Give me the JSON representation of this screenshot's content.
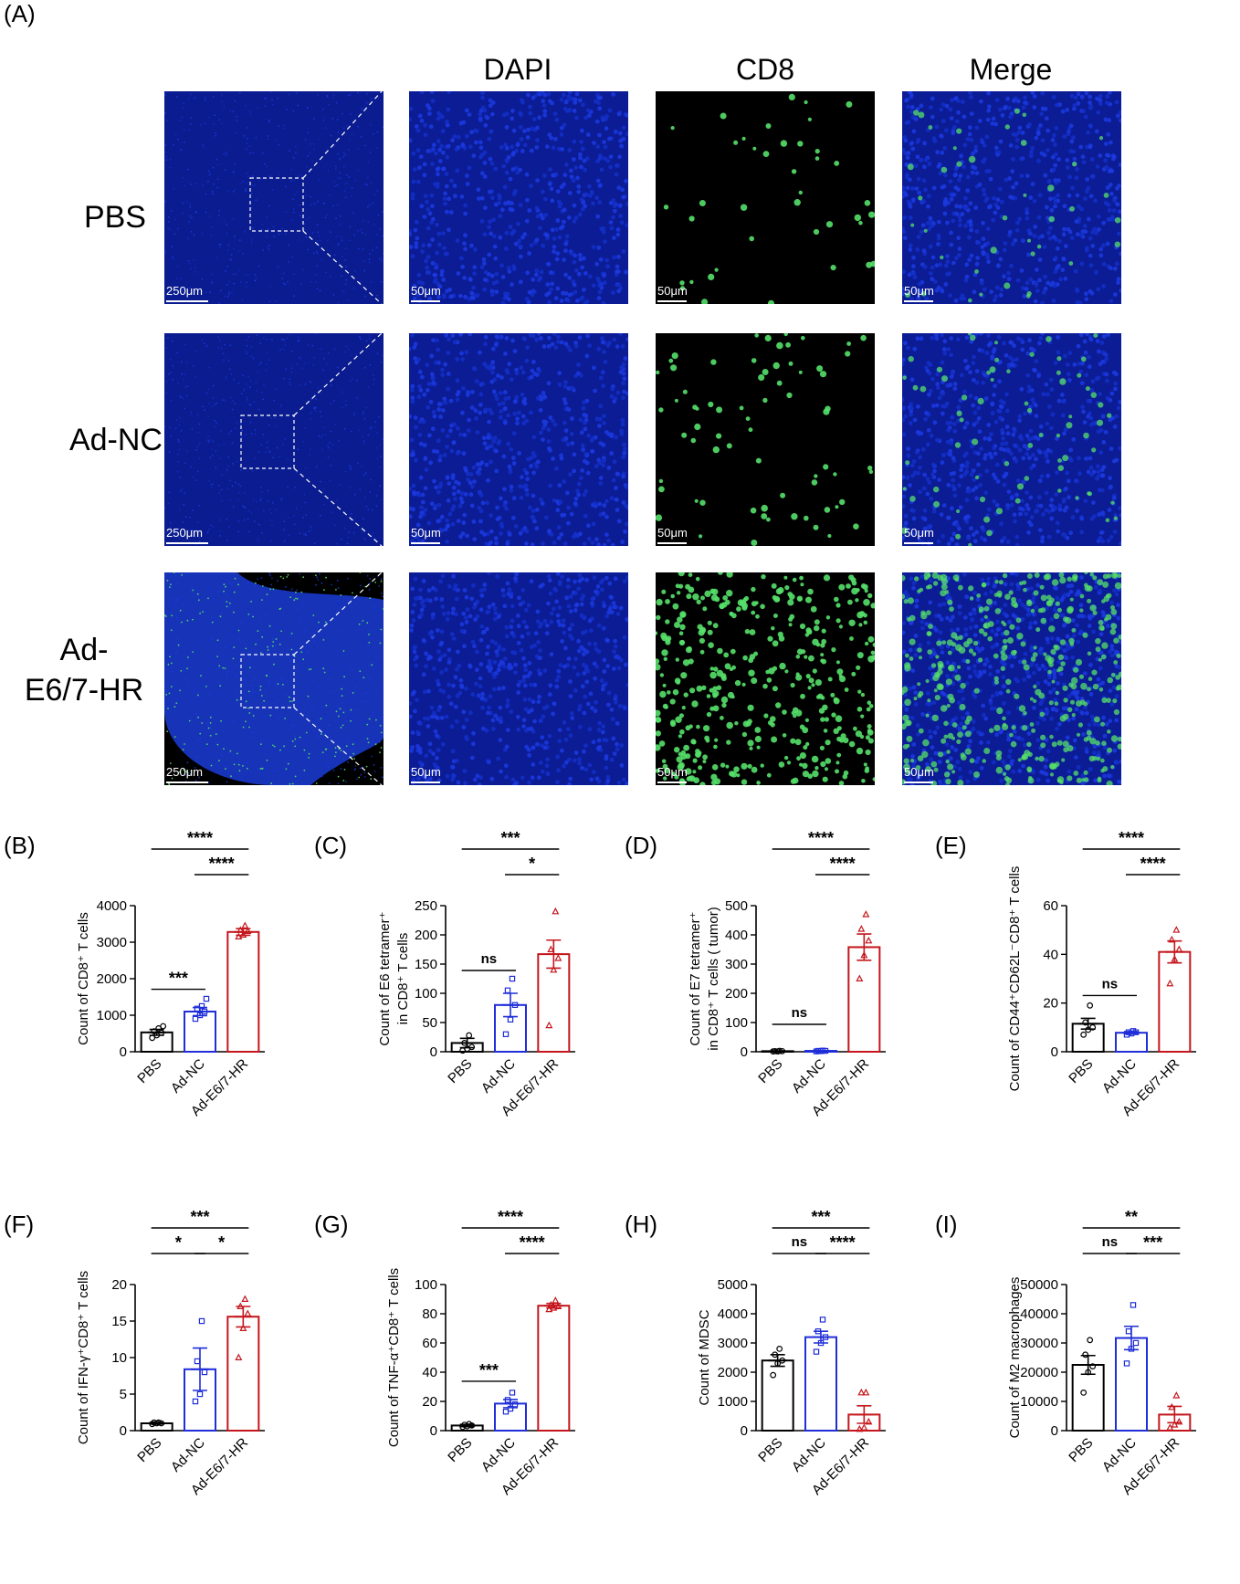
{
  "figure": {
    "panel_A_letter": "(A)",
    "columns": [
      "DAPI",
      "CD8",
      "Merge"
    ],
    "rows": [
      "PBS",
      "Ad-NC",
      "Ad-\nE6/7-HR"
    ],
    "row_labels": [
      [
        "PBS"
      ],
      [
        "Ad-NC"
      ],
      [
        "Ad-",
        "E6/7-HR"
      ]
    ],
    "scale_overview": "250μm",
    "scale_zoom": "50μm",
    "colors": {
      "pbs": "#000000",
      "adnc": "#1f2ed8",
      "ade67": "#c4161c",
      "dapi_blue": "#0b1fa8",
      "cd8_green": "#55e06a"
    }
  },
  "chart_data": [
    {
      "panel": "(B)",
      "type": "bar",
      "categories": [
        "PBS",
        "Ad-NC",
        "Ad-E6/7-HR"
      ],
      "values": [
        530,
        1100,
        3280
      ],
      "errors": [
        80,
        110,
        90
      ],
      "points": [
        [
          380,
          450,
          520,
          560,
          640,
          700
        ],
        [
          900,
          1000,
          1100,
          1180,
          1250,
          1450
        ],
        [
          3150,
          3200,
          3300,
          3330,
          3450
        ]
      ],
      "ylabel": "Count of CD8⁺ T cells",
      "ylim": [
        0,
        4000
      ],
      "yticks": [
        0,
        1000,
        2000,
        3000,
        4000
      ],
      "brackets": [
        {
          "from": 0,
          "to": 2,
          "label": "****"
        },
        {
          "from": 1,
          "to": 2,
          "label": "****"
        },
        {
          "from": 0,
          "to": 1,
          "label": "***"
        }
      ]
    },
    {
      "panel": "(C)",
      "type": "bar",
      "categories": [
        "PBS",
        "Ad-NC",
        "Ad-E6/7-HR"
      ],
      "values": [
        15,
        80,
        167
      ],
      "errors": [
        8,
        20,
        24
      ],
      "points": [
        [
          2,
          5,
          8,
          15,
          28
        ],
        [
          30,
          55,
          80,
          105,
          125
        ],
        [
          45,
          140,
          160,
          175,
          240
        ]
      ],
      "ylabel": "Count of E6 tetramer⁺ in CD8⁺ T cells",
      "ylim": [
        0,
        250
      ],
      "yticks": [
        0,
        50,
        100,
        150,
        200,
        250
      ],
      "brackets": [
        {
          "from": 0,
          "to": 2,
          "label": "***"
        },
        {
          "from": 1,
          "to": 2,
          "label": "*"
        },
        {
          "from": 0,
          "to": 1,
          "label": "ns"
        }
      ]
    },
    {
      "panel": "(D)",
      "type": "bar",
      "categories": [
        "PBS",
        "Ad-NC",
        "Ad-E6/7-HR"
      ],
      "values": [
        2,
        3,
        358
      ],
      "errors": [
        1,
        1,
        45
      ],
      "points": [
        [
          1,
          1,
          2,
          2,
          3
        ],
        [
          1,
          2,
          3,
          3,
          4
        ],
        [
          250,
          330,
          380,
          420,
          470
        ]
      ],
      "ylabel": "Count of E7 tetramer⁺ in CD8⁺ T cells ( tumor)",
      "ylim": [
        0,
        500
      ],
      "yticks": [
        0,
        100,
        200,
        300,
        400,
        500
      ],
      "brackets": [
        {
          "from": 0,
          "to": 2,
          "label": "****"
        },
        {
          "from": 1,
          "to": 2,
          "label": "****"
        },
        {
          "from": 0,
          "to": 1,
          "label": "ns"
        }
      ]
    },
    {
      "panel": "(E)",
      "type": "bar",
      "categories": [
        "PBS",
        "Ad-NC",
        "Ad-E6/7-HR"
      ],
      "values": [
        11.5,
        7.8,
        41
      ],
      "errors": [
        2.2,
        0.5,
        4.5
      ],
      "points": [
        [
          7,
          9,
          10,
          12,
          19
        ],
        [
          7,
          7.5,
          8,
          8,
          8.5
        ],
        [
          28,
          38,
          42,
          46,
          50
        ]
      ],
      "ylabel": "Count of CD44⁺CD62L⁻CD8⁺ T cells",
      "ylim": [
        0,
        60
      ],
      "yticks": [
        0,
        20,
        40,
        60
      ],
      "brackets": [
        {
          "from": 0,
          "to": 2,
          "label": "****"
        },
        {
          "from": 1,
          "to": 2,
          "label": "****"
        },
        {
          "from": 0,
          "to": 1,
          "label": "ns"
        }
      ]
    },
    {
      "panel": "(F)",
      "type": "bar",
      "categories": [
        "PBS",
        "Ad-NC",
        "Ad-E6/7-HR"
      ],
      "values": [
        1.0,
        8.4,
        15.6
      ],
      "errors": [
        0.1,
        2.9,
        1.4
      ],
      "points": [
        [
          0.9,
          1.0,
          1.0,
          1.1,
          1.1
        ],
        [
          4,
          5,
          8,
          9.5,
          15
        ],
        [
          10,
          14,
          16,
          17,
          18
        ]
      ],
      "ylabel": "Count of IFN-γ⁺CD8⁺ T cells",
      "ylim": [
        0,
        20
      ],
      "yticks": [
        0,
        5,
        10,
        15,
        20
      ],
      "brackets": [
        {
          "from": 0,
          "to": 2,
          "label": "***"
        },
        {
          "from": 0,
          "to": 1,
          "label": "*"
        },
        {
          "from": 1,
          "to": 2,
          "label": "*"
        }
      ]
    },
    {
      "panel": "(G)",
      "type": "bar",
      "categories": [
        "PBS",
        "Ad-NC",
        "Ad-E6/7-HR"
      ],
      "values": [
        3.5,
        18.5,
        85.5
      ],
      "errors": [
        0.8,
        2.8,
        1.6
      ],
      "points": [
        [
          2.5,
          3,
          3.5,
          4,
          4.5
        ],
        [
          13,
          15,
          18,
          21,
          26
        ],
        [
          83,
          84,
          85,
          86,
          89
        ]
      ],
      "ylabel": "Count of TNF-α⁺CD8⁺ T cells",
      "ylim": [
        0,
        100
      ],
      "yticks": [
        0,
        20,
        40,
        60,
        80,
        100
      ],
      "brackets": [
        {
          "from": 0,
          "to": 2,
          "label": "****"
        },
        {
          "from": 1,
          "to": 2,
          "label": "****"
        },
        {
          "from": 0,
          "to": 1,
          "label": "***"
        }
      ]
    },
    {
      "panel": "(H)",
      "type": "bar",
      "categories": [
        "PBS",
        "Ad-NC",
        "Ad-E6/7-HR"
      ],
      "values": [
        2400,
        3200,
        550
      ],
      "errors": [
        200,
        200,
        300
      ],
      "points": [
        [
          1900,
          2300,
          2400,
          2600,
          2800
        ],
        [
          2700,
          3000,
          3200,
          3400,
          3800
        ],
        [
          50,
          100,
          300,
          1300,
          1300
        ]
      ],
      "ylabel": "Count of MDSC",
      "ylim": [
        0,
        5000
      ],
      "yticks": [
        0,
        1000,
        2000,
        3000,
        4000,
        5000
      ],
      "brackets": [
        {
          "from": 0,
          "to": 2,
          "label": "***"
        },
        {
          "from": 0,
          "to": 1,
          "label": "ns"
        },
        {
          "from": 1,
          "to": 2,
          "label": "****"
        }
      ]
    },
    {
      "panel": "(I)",
      "type": "bar",
      "categories": [
        "PBS",
        "Ad-NC",
        "Ad-E6/7-HR"
      ],
      "values": [
        22500,
        31700,
        5500
      ],
      "errors": [
        3200,
        4000,
        2800
      ],
      "points": [
        [
          13000,
          20000,
          22000,
          26000,
          31000
        ],
        [
          23000,
          28000,
          30000,
          34000,
          43000
        ],
        [
          1000,
          2000,
          3000,
          8000,
          12000
        ]
      ],
      "ylabel": "Count of M2 macrophages",
      "ylim": [
        0,
        50000
      ],
      "yticks": [
        0,
        10000,
        20000,
        30000,
        40000,
        50000
      ],
      "brackets": [
        {
          "from": 0,
          "to": 2,
          "label": "**"
        },
        {
          "from": 0,
          "to": 1,
          "label": "ns"
        },
        {
          "from": 1,
          "to": 2,
          "label": "***"
        }
      ]
    }
  ]
}
